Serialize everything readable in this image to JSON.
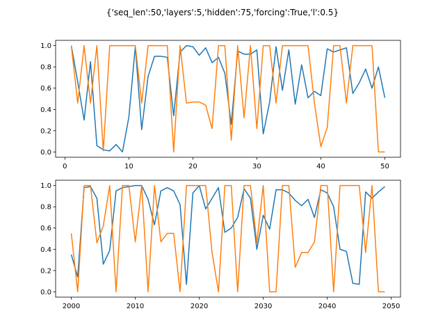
{
  "chart_data": {
    "title": "{'seq_len':50,'layers':5,'hidden':75,'forcing':True,'l':0.5}",
    "colors": {
      "series_a": "#1f77b4",
      "series_b": "#ff7f0e"
    },
    "charts": [
      {
        "type": "line",
        "xlim": [
          -1.45,
          52.45
        ],
        "ylim": [
          -0.05,
          1.05
        ],
        "x_ticks": [
          0,
          10,
          20,
          30,
          40,
          50
        ],
        "y_ticks": [
          0.0,
          0.2,
          0.4,
          0.6,
          0.8,
          1.0
        ],
        "x": [
          1,
          2,
          3,
          4,
          5,
          6,
          7,
          8,
          9,
          10,
          11,
          12,
          13,
          14,
          15,
          16,
          17,
          18,
          19,
          20,
          21,
          22,
          23,
          24,
          25,
          26,
          27,
          28,
          29,
          30,
          31,
          32,
          33,
          34,
          35,
          36,
          37,
          38,
          39,
          40,
          41,
          42,
          43,
          44,
          45,
          46,
          47,
          48,
          49,
          50
        ],
        "series": [
          {
            "values": [
              1.0,
              0.66,
              0.3,
              0.85,
              0.06,
              0.02,
              0.01,
              0.07,
              0.0,
              0.33,
              0.99,
              0.21,
              0.71,
              0.9,
              0.9,
              0.89,
              0.34,
              0.94,
              1.0,
              0.99,
              0.91,
              0.98,
              0.84,
              0.89,
              0.74,
              0.26,
              0.95,
              0.92,
              0.92,
              0.96,
              0.17,
              0.47,
              0.99,
              0.58,
              0.96,
              0.45,
              0.82,
              0.51,
              0.57,
              0.53,
              0.97,
              0.94,
              0.96,
              0.98,
              0.55,
              0.65,
              0.78,
              0.6,
              0.8,
              0.51
            ]
          },
          {
            "values": [
              1.0,
              0.46,
              1.0,
              0.46,
              1.0,
              0.01,
              1.0,
              1.0,
              1.0,
              1.0,
              1.0,
              0.46,
              1.0,
              1.0,
              1.0,
              1.0,
              0.0,
              1.0,
              0.46,
              0.47,
              0.47,
              0.44,
              0.22,
              1.0,
              1.0,
              0.11,
              1.0,
              0.32,
              1.0,
              0.22,
              1.0,
              1.0,
              0.46,
              1.0,
              1.0,
              1.0,
              1.0,
              1.0,
              0.46,
              0.05,
              0.23,
              1.0,
              1.0,
              0.46,
              1.0,
              1.0,
              1.0,
              1.0,
              0.0,
              0.0
            ]
          }
        ]
      },
      {
        "type": "line",
        "xlim": [
          1997.55,
          2051.45
        ],
        "ylim": [
          -0.05,
          1.05
        ],
        "x_ticks": [
          2000,
          2010,
          2020,
          2030,
          2040,
          2050
        ],
        "y_ticks": [
          0.0,
          0.2,
          0.4,
          0.6,
          0.8,
          1.0
        ],
        "x": [
          2000,
          2001,
          2002,
          2003,
          2004,
          2005,
          2006,
          2007,
          2008,
          2009,
          2010,
          2011,
          2012,
          2013,
          2014,
          2015,
          2016,
          2017,
          2018,
          2019,
          2020,
          2021,
          2022,
          2023,
          2024,
          2025,
          2026,
          2027,
          2028,
          2029,
          2030,
          2031,
          2032,
          2033,
          2034,
          2035,
          2036,
          2037,
          2038,
          2039,
          2040,
          2041,
          2042,
          2043,
          2044,
          2045,
          2046,
          2047,
          2048,
          2049
        ],
        "series": [
          {
            "values": [
              0.35,
              0.14,
              0.98,
              0.99,
              0.88,
              0.26,
              0.39,
              0.95,
              0.98,
              0.99,
              1.0,
              1.0,
              0.87,
              0.63,
              0.95,
              0.98,
              0.95,
              0.82,
              0.07,
              0.93,
              1.0,
              0.78,
              0.88,
              0.98,
              0.56,
              0.6,
              0.7,
              0.97,
              0.88,
              0.4,
              0.72,
              0.59,
              0.96,
              0.96,
              0.93,
              0.86,
              0.81,
              0.87,
              0.7,
              0.96,
              0.93,
              0.8,
              0.4,
              0.38,
              0.08,
              0.07,
              0.94,
              0.88,
              0.94,
              0.99
            ]
          },
          {
            "values": [
              0.55,
              0.0,
              1.0,
              1.0,
              0.46,
              0.62,
              1.0,
              0.0,
              1.0,
              1.0,
              0.47,
              1.0,
              0.0,
              1.0,
              0.47,
              0.55,
              0.55,
              0.0,
              1.0,
              1.0,
              1.0,
              1.0,
              0.37,
              0.0,
              1.0,
              1.0,
              0.0,
              1.0,
              1.0,
              0.46,
              1.0,
              0.0,
              0.0,
              1.0,
              1.0,
              0.23,
              0.37,
              0.37,
              0.47,
              1.0,
              1.0,
              0.0,
              1.0,
              1.0,
              1.0,
              1.0,
              0.37,
              1.0,
              0.0,
              0.0
            ]
          }
        ]
      }
    ]
  }
}
